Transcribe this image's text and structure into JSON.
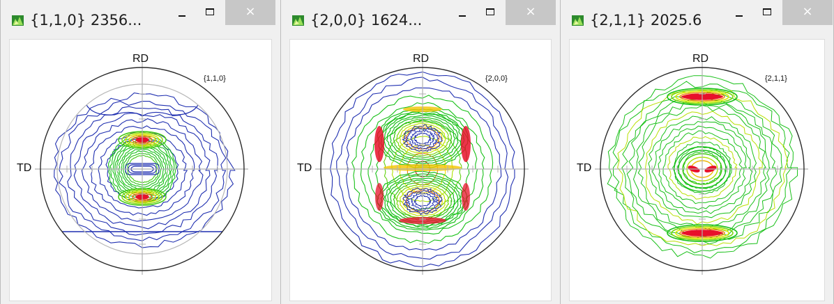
{
  "windows": [
    {
      "title": "{1,1,0} 2356...",
      "close_glyph": "×",
      "rd_label": "RD",
      "td_label": "TD",
      "family_label": "{1,1,0}",
      "icon": "pole-figure-app-icon",
      "pattern": "ring-bands"
    },
    {
      "title": "{2,0,0} 1624...",
      "close_glyph": "×",
      "rd_label": "RD",
      "td_label": "TD",
      "family_label": "{2,0,0}",
      "icon": "pole-figure-app-icon",
      "pattern": "figure-eight"
    },
    {
      "title": "{2,1,1} 2025.6",
      "close_glyph": "×",
      "rd_label": "RD",
      "td_label": "TD",
      "family_label": "{2,1,1}",
      "icon": "pole-figure-app-icon",
      "pattern": "rings-cross"
    }
  ],
  "colors": {
    "contour_low": "#1f2fb0",
    "contour_mid": "#18c018",
    "contour_high": "#f0f000",
    "peak": "#e8102a",
    "close_button_bg": "#c7c7c7"
  }
}
